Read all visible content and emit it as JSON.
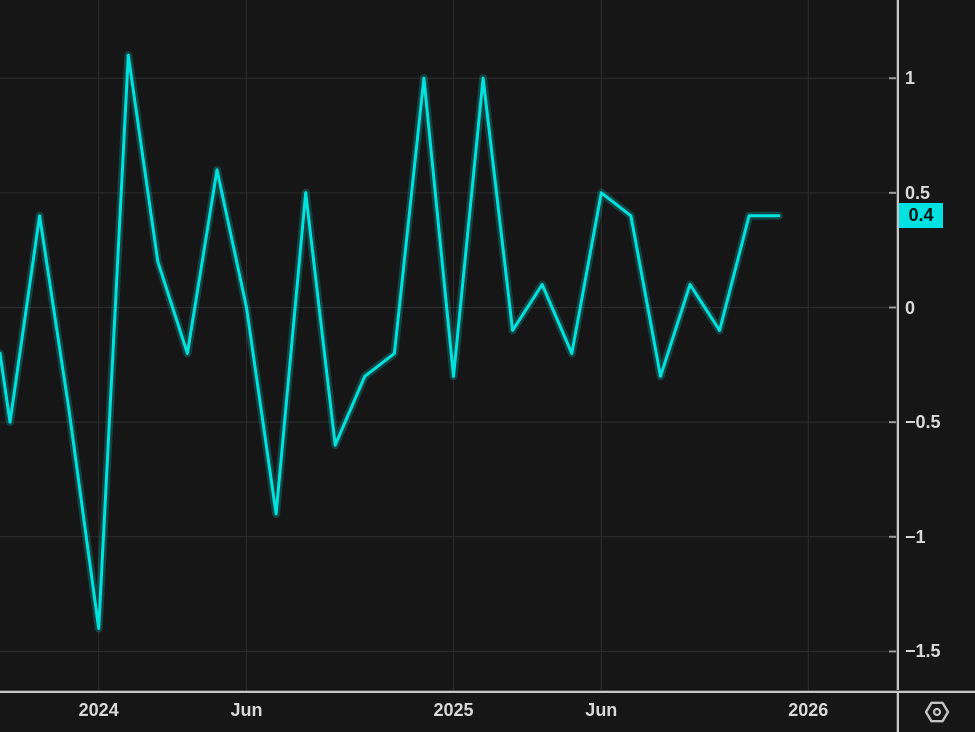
{
  "window": {
    "background": "#161616",
    "grid_color": "#2d2d2d",
    "axis_line_color": "#c6c6c6",
    "label_color": "#d9d9d9"
  },
  "chart_data": {
    "type": "line",
    "title": "",
    "xlabel": "",
    "ylabel": "",
    "grid": true,
    "legend": "none",
    "ylim": [
      -1.67,
      1.34
    ],
    "x_categories": [
      "Oct 2023",
      "Nov 2023",
      "Dec 2023",
      "Jan 2024",
      "Feb 2024",
      "Mar 2024",
      "Apr 2024",
      "May 2024",
      "Jun 2024",
      "Jul 2024",
      "Aug 2024",
      "Sep 2024",
      "Oct 2024",
      "Nov 2024",
      "Dec 2024",
      "Jan 2025",
      "Feb 2025",
      "Mar 2025",
      "Apr 2025",
      "May 2025",
      "Jun 2025",
      "Jul 2025",
      "Aug 2025",
      "Sep 2025",
      "Oct 2025",
      "Nov 2025",
      "Dec 2025"
    ],
    "series": [
      {
        "name": "monthly-change",
        "color": "#00e2de",
        "values": [
          -0.5,
          0.4,
          -0.45,
          -1.4,
          1.1,
          0.2,
          -0.2,
          0.6,
          0.0,
          -0.9,
          0.5,
          -0.6,
          -0.3,
          -0.2,
          1.0,
          -0.3,
          1.0,
          -0.1,
          0.1,
          -0.2,
          0.5,
          0.4,
          -0.3,
          0.1,
          -0.1,
          0.4,
          0.4
        ]
      }
    ],
    "edge_start_value": -0.2,
    "y_ticks": [
      {
        "label": "1",
        "value": 1
      },
      {
        "label": "0.5",
        "value": 0.5
      },
      {
        "label": "0",
        "value": 0
      },
      {
        "label": "−0.5",
        "value": -0.5
      },
      {
        "label": "−1",
        "value": -1
      },
      {
        "label": "−1.5",
        "value": -1.5
      }
    ],
    "x_ticks": [
      {
        "label": "2024",
        "month_index": 3
      },
      {
        "label": "Jun",
        "month_index": 8
      },
      {
        "label": "2025",
        "month_index": 15
      },
      {
        "label": "Jun",
        "month_index": 20
      },
      {
        "label": "2026",
        "month_index": 27
      }
    ],
    "last_value_label": "0.4",
    "last_value_badge_color": "#00e2e2"
  },
  "icons": {
    "settings": "hexagon-settings-icon"
  }
}
